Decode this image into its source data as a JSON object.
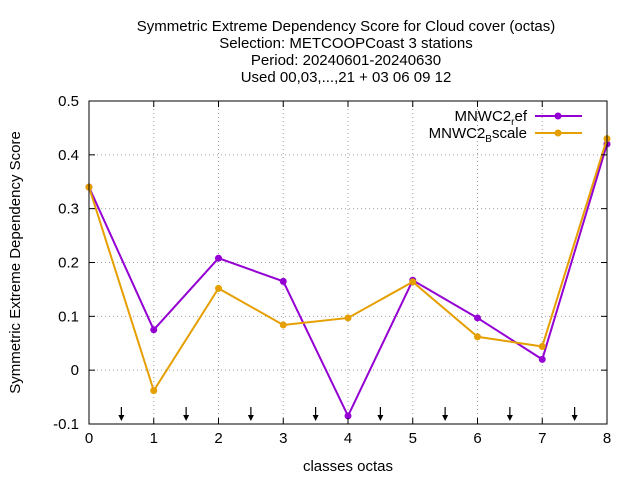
{
  "chart_data": {
    "type": "line",
    "title_lines": [
      "Symmetric Extreme Dependency Score  for Cloud cover (octas)",
      "Selection: METCOOPCoast      3 stations",
      "Period: 20240601-20240630",
      "Used 00,03,...,21 + 03 06 09 12"
    ],
    "xlabel": "classes octas",
    "ylabel": "Symmetric Extreme Dependency Score",
    "xlim": [
      0,
      8
    ],
    "ylim": [
      -0.1,
      0.5
    ],
    "x_ticks": [
      0,
      1,
      2,
      3,
      4,
      5,
      6,
      7,
      8
    ],
    "x_tick_labels": [
      "0",
      "1",
      "2",
      "3",
      "4",
      "5",
      "6",
      "7",
      "8"
    ],
    "y_ticks": [
      -0.1,
      0,
      0.1,
      0.2,
      0.3,
      0.4,
      0.5
    ],
    "y_tick_labels": [
      "-0.1",
      "0",
      "0.1",
      "0.2",
      "0.3",
      "0.4",
      "0.5"
    ],
    "grid": true,
    "legend_position": "top-right",
    "arrow_markers_x": [
      0.5,
      1.5,
      2.5,
      3.5,
      4.5,
      5.5,
      6.5,
      7.5
    ],
    "series": [
      {
        "name": "MNWC2_ref",
        "legend_main": "MNWC2",
        "legend_sub": "r",
        "legend_tail": "ef",
        "color": "#9400d3",
        "x": [
          0,
          1,
          2,
          3,
          4,
          5,
          6,
          7,
          8
        ],
        "values": [
          0.34,
          0.075,
          0.208,
          0.165,
          -0.085,
          0.167,
          0.097,
          0.02,
          0.42
        ]
      },
      {
        "name": "MNWC2_Bscale",
        "legend_main": "MNWC2",
        "legend_sub": "B",
        "legend_tail": "scale",
        "color": "#e69f00",
        "x": [
          0,
          1,
          2,
          3,
          4,
          5,
          6,
          7,
          8
        ],
        "values": [
          0.34,
          -0.038,
          0.152,
          0.084,
          0.097,
          0.164,
          0.062,
          0.044,
          0.43
        ]
      }
    ]
  }
}
